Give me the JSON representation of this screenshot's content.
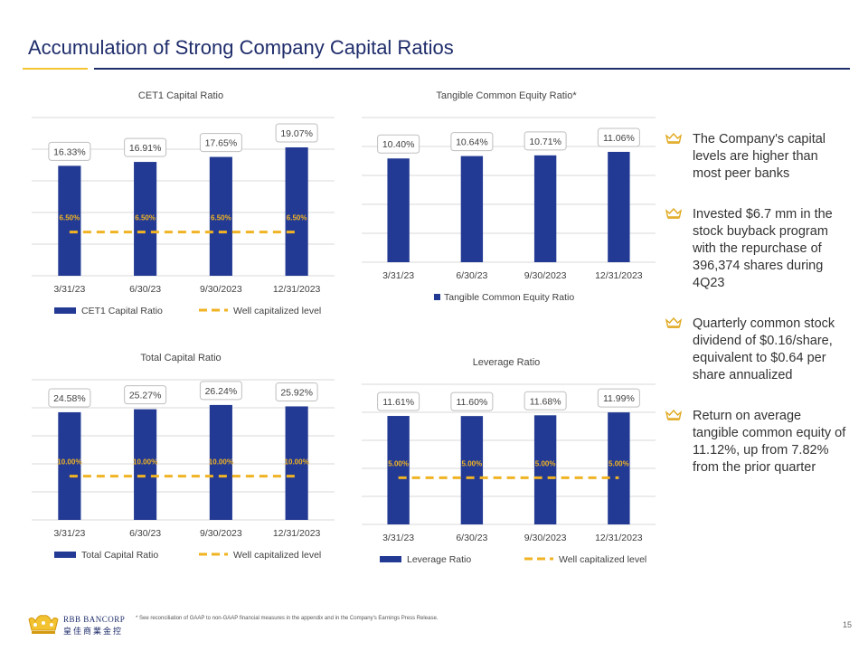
{
  "header": {
    "title": "Accumulation of Strong Company Capital Ratios"
  },
  "colors": {
    "bar": "#233a94",
    "threshold": "#f0b323",
    "title": "#1f2d6b",
    "grid": "#d9d9d9"
  },
  "chart_data": [
    {
      "type": "bar",
      "title": "CET1 Capital Ratio",
      "categories": [
        "3/31/23",
        "6/30/23",
        "9/30/2023",
        "12/31/2023"
      ],
      "series": [
        {
          "name": "CET1 Capital Ratio",
          "values": [
            16.33,
            16.91,
            17.65,
            19.07
          ],
          "labels": [
            "16.33%",
            "16.91%",
            "17.65%",
            "19.07%"
          ]
        },
        {
          "name": "Well capitalized level",
          "values": [
            6.5,
            6.5,
            6.5,
            6.5
          ],
          "labels": [
            "6.50%",
            "6.50%",
            "6.50%",
            "6.50%"
          ],
          "style": "dashed-line"
        }
      ],
      "ylim": [
        0,
        23.5
      ],
      "grid": true,
      "legend": "bottom"
    },
    {
      "type": "bar",
      "title": "Tangible Common Equity Ratio*",
      "categories": [
        "3/31/23",
        "6/30/23",
        "9/30/2023",
        "12/31/2023"
      ],
      "series": [
        {
          "name": "Tangible Common Equity Ratio",
          "values": [
            10.4,
            10.64,
            10.71,
            11.06
          ],
          "labels": [
            "10.40%",
            "10.64%",
            "10.71%",
            "11.06%"
          ]
        }
      ],
      "ylim": [
        0,
        14.5
      ],
      "grid": true,
      "legend": "bottom"
    },
    {
      "type": "bar",
      "title": "Total Capital Ratio",
      "categories": [
        "3/31/23",
        "6/30/23",
        "9/30/2023",
        "12/31/2023"
      ],
      "series": [
        {
          "name": "Total Capital Ratio",
          "values": [
            24.58,
            25.27,
            26.24,
            25.92
          ],
          "labels": [
            "24.58%",
            "25.27%",
            "26.24%",
            "25.92%"
          ]
        },
        {
          "name": "Well capitalized level",
          "values": [
            10.0,
            10.0,
            10.0,
            10.0
          ],
          "labels": [
            "10.00%",
            "10.00%",
            "10.00%",
            "10.00%"
          ],
          "style": "dashed-line"
        }
      ],
      "ylim": [
        0,
        32
      ],
      "grid": true,
      "legend": "bottom"
    },
    {
      "type": "bar",
      "title": "Leverage Ratio",
      "categories": [
        "3/31/23",
        "6/30/23",
        "9/30/2023",
        "12/31/2023"
      ],
      "series": [
        {
          "name": "Leverage Ratio",
          "values": [
            11.61,
            11.6,
            11.68,
            11.99
          ],
          "labels": [
            "11.61%",
            "11.60%",
            "11.68%",
            "11.99%"
          ]
        },
        {
          "name": "Well capitalized level",
          "values": [
            5.0,
            5.0,
            5.0,
            5.0
          ],
          "labels": [
            "5.00%",
            "5.00%",
            "5.00%",
            "5.00%"
          ],
          "style": "dashed-line"
        }
      ],
      "ylim": [
        0,
        15
      ],
      "grid": true,
      "legend": "bottom"
    }
  ],
  "bullets": [
    {
      "icon": "crown-icon",
      "text": "The Company's capital levels are higher than most peer banks"
    },
    {
      "icon": "crown-icon",
      "text": "Invested $6.7 mm in the stock buyback program with the repurchase of 396,374 shares during 4Q23"
    },
    {
      "icon": "crown-icon",
      "text": "Quarterly common stock dividend of $0.16/share, equivalent to $0.64 per share annualized"
    },
    {
      "icon": "crown-icon",
      "text": "Return on average tangible common equity of 11.12%, up from 7.82% from the prior quarter"
    }
  ],
  "footer": {
    "logo_en": "RBB BANCORP",
    "logo_zh": "皇佳商業金控",
    "footnote": "* See reconciliation of GAAP to non-GAAP financial measures in the appendix and in the Company's Earnings Press Release.",
    "page_number": "15"
  }
}
